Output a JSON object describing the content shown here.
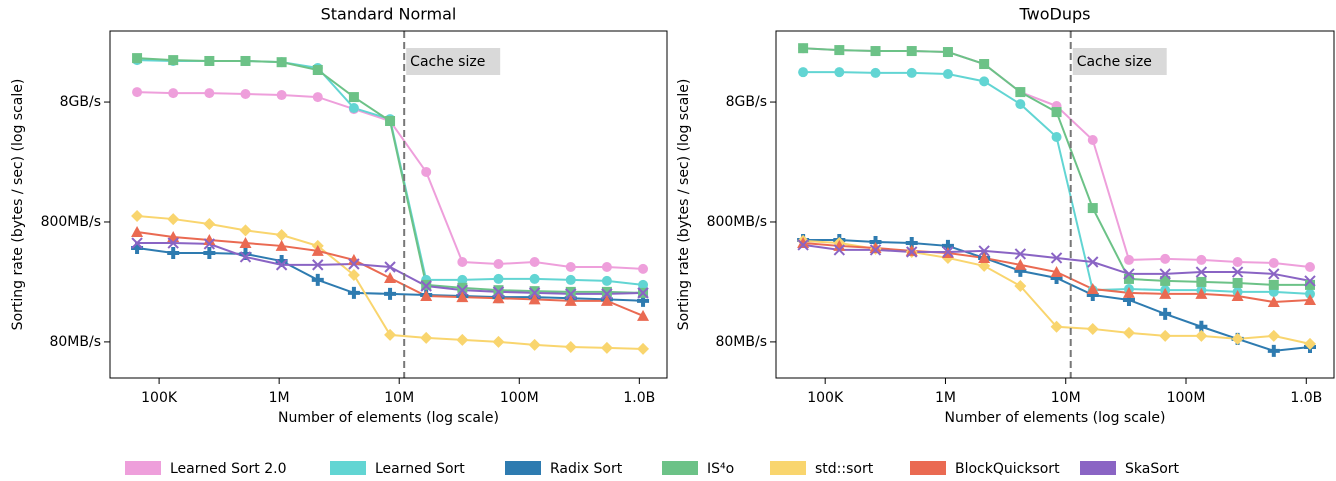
{
  "chart_data": [
    {
      "type": "line",
      "title": "Standard Normal",
      "x_label": "Number of elements (log scale)",
      "y_label": "Sorting rate (bytes / sec) (log scale)",
      "log_x": true,
      "log_y": true,
      "x": [
        65536,
        131072,
        262144,
        524288,
        1048576,
        2097152,
        4194304,
        8388608,
        16777216,
        33554432,
        67108864,
        134217728,
        268435456,
        536870912,
        1073741824
      ],
      "xlim": [
        39000,
        1700000000
      ],
      "xticks": [
        {
          "value": 100000,
          "label": "100K"
        },
        {
          "value": 1000000,
          "label": "1M"
        },
        {
          "value": 10000000,
          "label": "10M"
        },
        {
          "value": 100000000,
          "label": "100M"
        },
        {
          "value": 1000000000,
          "label": "1.0B"
        }
      ],
      "ylim": [
        40,
        31300
      ],
      "yticks": [
        {
          "value": 80,
          "label": "80MB/s"
        },
        {
          "value": 800,
          "label": "800MB/s"
        },
        {
          "value": 8000,
          "label": "8GB/s"
        }
      ],
      "annotations": [
        {
          "text": "Cache size",
          "x": 11000000
        }
      ],
      "series": [
        {
          "name": "Learned Sort 2.0",
          "color": "#ee9fdb",
          "marker": "o",
          "values": [
            9690,
            9500,
            9500,
            9340,
            9150,
            8800,
            6990,
            5560,
            2090,
            371,
            357,
            371,
            337,
            337,
            325
          ]
        },
        {
          "name": "Learned Sort",
          "color": "#62d5d3",
          "marker": "o",
          "values": [
            17900,
            17600,
            17600,
            17600,
            17200,
            15400,
            7130,
            5770,
            263,
            263,
            268,
            268,
            263,
            258,
            239
          ]
        },
        {
          "name": "Radix Sort",
          "color": "#2e7bb0",
          "marker": "P",
          "values": [
            485,
            441,
            441,
            433,
            378,
            263,
            205,
            201,
            197,
            193,
            189,
            189,
            185,
            181,
            176
          ]
        },
        {
          "name": "IS⁴o",
          "color": "#6cc287",
          "marker": "s",
          "values": [
            18600,
            17900,
            17600,
            17600,
            17200,
            14800,
            8800,
            5560,
            239,
            226,
            216,
            212,
            209,
            209,
            205
          ]
        },
        {
          "name": "std::sort",
          "color": "#f9d56e",
          "marker": "D",
          "values": [
            897,
            846,
            770,
            681,
            623,
            505,
            289,
            91.5,
            86.4,
            83.2,
            80,
            75.6,
            72.6,
            71.3,
            69.9
          ]
        },
        {
          "name": "BlockQuicksort",
          "color": "#ea6a52",
          "marker": "^",
          "values": [
            660,
            600,
            566,
            534,
            505,
            459,
            386,
            273,
            193,
            189,
            185,
            181,
            176,
            176,
            132
          ]
        },
        {
          "name": "SkaSort",
          "color": "#8a64c4",
          "marker": "x",
          "values": [
            534,
            534,
            525,
            409,
            351,
            351,
            357,
            337,
            234,
            216,
            209,
            205,
            201,
            201,
            205
          ]
        }
      ]
    },
    {
      "type": "line",
      "title": "TwoDups",
      "x_label": "Number of elements (log scale)",
      "y_label": "Sorting rate (bytes / sec) (log scale)",
      "log_x": true,
      "log_y": true,
      "x": [
        65536,
        131072,
        262144,
        524288,
        1048576,
        2097152,
        4194304,
        8388608,
        16777216,
        33554432,
        67108864,
        134217728,
        268435456,
        536870912,
        1073741824
      ],
      "xlim": [
        39000,
        1700000000
      ],
      "xticks": [
        {
          "value": 100000,
          "label": "100K"
        },
        {
          "value": 1000000,
          "label": "1M"
        },
        {
          "value": 10000000,
          "label": "10M"
        },
        {
          "value": 100000000,
          "label": "100M"
        },
        {
          "value": 1000000000,
          "label": "1.0B"
        }
      ],
      "ylim": [
        40,
        31300
      ],
      "yticks": [
        {
          "value": 80,
          "label": "80MB/s"
        },
        {
          "value": 800,
          "label": "800MB/s"
        },
        {
          "value": 8000,
          "label": "8GB/s"
        }
      ],
      "annotations": [
        {
          "text": "Cache size",
          "x": 11000000
        }
      ],
      "series": [
        {
          "name": "Learned Sort 2.0",
          "color": "#ee9fdb",
          "marker": "o",
          "values": [
            22500,
            21700,
            21300,
            21300,
            20900,
            16600,
            9690,
            7410,
            3860,
            386,
            394,
            386,
            371,
            364,
            337
          ]
        },
        {
          "name": "Learned Sort",
          "color": "#62d5d3",
          "marker": "o",
          "values": [
            14200,
            14200,
            14000,
            14000,
            13700,
            11900,
            7690,
            4090,
            216,
            221,
            216,
            216,
            209,
            209,
            201
          ]
        },
        {
          "name": "Radix Sort",
          "color": "#2e7bb0",
          "marker": "P",
          "values": [
            566,
            566,
            545,
            534,
            505,
            401,
            313,
            273,
            197,
            179,
            137,
            107,
            84.7,
            67.3,
            72.6
          ]
        },
        {
          "name": "IS⁴o",
          "color": "#6cc287",
          "marker": "s",
          "values": [
            22500,
            21700,
            21300,
            21300,
            20900,
            16600,
            9690,
            6600,
            1045,
            268,
            258,
            253,
            248,
            239,
            239
          ]
        },
        {
          "name": "std::sort",
          "color": "#f9d56e",
          "marker": "D",
          "values": [
            556,
            534,
            477,
            450,
            401,
            344,
            234,
            107,
            102.6,
            95.1,
            89.8,
            89.8,
            84.7,
            89.8,
            77
          ]
        },
        {
          "name": "BlockQuicksort",
          "color": "#ea6a52",
          "marker": "^",
          "values": [
            534,
            505,
            485,
            459,
            441,
            401,
            351,
            306,
            221,
            205,
            201,
            201,
            193,
            172,
            179
          ]
        },
        {
          "name": "SkaSort",
          "color": "#8a64c4",
          "marker": "x",
          "values": [
            515,
            468,
            468,
            450,
            450,
            459,
            433,
            401,
            371,
            295,
            295,
            306,
            306,
            295,
            258
          ]
        }
      ]
    }
  ]
}
